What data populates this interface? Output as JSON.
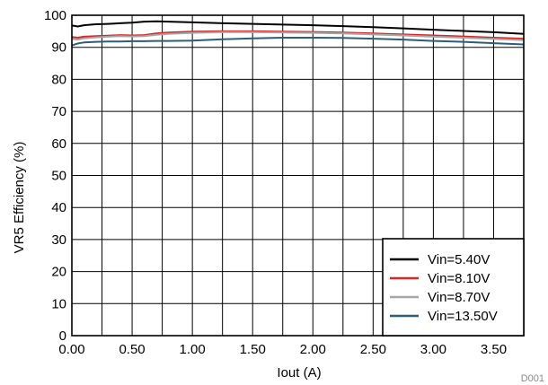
{
  "chart_data": {
    "type": "line",
    "title": "",
    "xlabel": "Iout (A)",
    "ylabel": "VR5 Efficiency (%)",
    "xlim": [
      0,
      3.75
    ],
    "ylim": [
      0,
      100
    ],
    "x_ticks": [
      0,
      0.25,
      0.5,
      0.75,
      1,
      1.25,
      1.5,
      1.75,
      2,
      2.25,
      2.5,
      2.75,
      3,
      3.25,
      3.5,
      3.75
    ],
    "x_tick_labels": [
      "0.00",
      "0.50",
      "1.00",
      "1.50",
      "2.00",
      "2.50",
      "3.00",
      "3.50"
    ],
    "x_tick_label_values": [
      0,
      0.5,
      1,
      1.5,
      2,
      2.5,
      3,
      3.5
    ],
    "y_ticks": [
      0,
      10,
      20,
      30,
      40,
      50,
      60,
      70,
      80,
      90,
      100
    ],
    "y_tick_labels": [
      "0",
      "10",
      "20",
      "30",
      "40",
      "50",
      "60",
      "70",
      "80",
      "90",
      "100"
    ],
    "grid": true,
    "legend_position": "bottom-right",
    "corner_label": "D001",
    "series": [
      {
        "name": "Vin=5.40V",
        "color": "#000000",
        "x": [
          0,
          0.05,
          0.1,
          0.2,
          0.3,
          0.4,
          0.5,
          0.6,
          0.7,
          0.8,
          1.0,
          1.25,
          1.5,
          1.75,
          2.0,
          2.25,
          2.5,
          2.75,
          3.0,
          3.25,
          3.5,
          3.75
        ],
        "y": [
          96.8,
          96.5,
          96.9,
          97.2,
          97.3,
          97.5,
          97.7,
          98.0,
          98.1,
          98.0,
          97.8,
          97.5,
          97.3,
          97.1,
          96.9,
          96.6,
          96.3,
          95.9,
          95.5,
          95.1,
          94.7,
          94.2
        ]
      },
      {
        "name": "Vin=8.10V",
        "color": "#d62728",
        "x": [
          0,
          0.05,
          0.1,
          0.2,
          0.3,
          0.4,
          0.5,
          0.6,
          0.7,
          0.8,
          1.0,
          1.25,
          1.5,
          1.75,
          2.0,
          2.25,
          2.5,
          2.75,
          3.0,
          3.25,
          3.5,
          3.75
        ],
        "y": [
          93.2,
          93.0,
          93.3,
          93.5,
          93.6,
          93.8,
          93.7,
          93.8,
          94.3,
          94.6,
          94.9,
          95.0,
          95.0,
          94.9,
          94.8,
          94.6,
          94.3,
          94.0,
          93.7,
          93.4,
          93.0,
          92.7
        ]
      },
      {
        "name": "Vin=8.70V",
        "color": "#a6a6a6",
        "x": [
          0,
          0.05,
          0.1,
          0.2,
          0.3,
          0.4,
          0.5,
          0.6,
          0.7,
          0.8,
          1.0,
          1.25,
          1.5,
          1.75,
          2.0,
          2.25,
          2.5,
          2.75,
          3.0,
          3.25,
          3.5,
          3.75
        ],
        "y": [
          92.6,
          92.4,
          92.8,
          93.1,
          93.3,
          93.5,
          93.4,
          93.5,
          93.9,
          94.2,
          94.5,
          94.7,
          94.7,
          94.6,
          94.5,
          94.3,
          94.0,
          93.7,
          93.3,
          93.0,
          92.6,
          92.2
        ]
      },
      {
        "name": "Vin=13.50V",
        "color": "#2e5d78",
        "x": [
          0,
          0.05,
          0.1,
          0.2,
          0.3,
          0.4,
          0.5,
          0.6,
          0.7,
          0.8,
          1.0,
          1.25,
          1.5,
          1.75,
          2.0,
          2.25,
          2.5,
          2.75,
          3.0,
          3.25,
          3.5,
          3.75
        ],
        "y": [
          90.6,
          91.2,
          91.5,
          91.7,
          91.8,
          91.8,
          91.9,
          91.9,
          92.0,
          92.0,
          92.1,
          92.5,
          92.8,
          93.0,
          93.0,
          92.9,
          92.7,
          92.4,
          92.0,
          91.7,
          91.3,
          90.9
        ]
      }
    ]
  }
}
